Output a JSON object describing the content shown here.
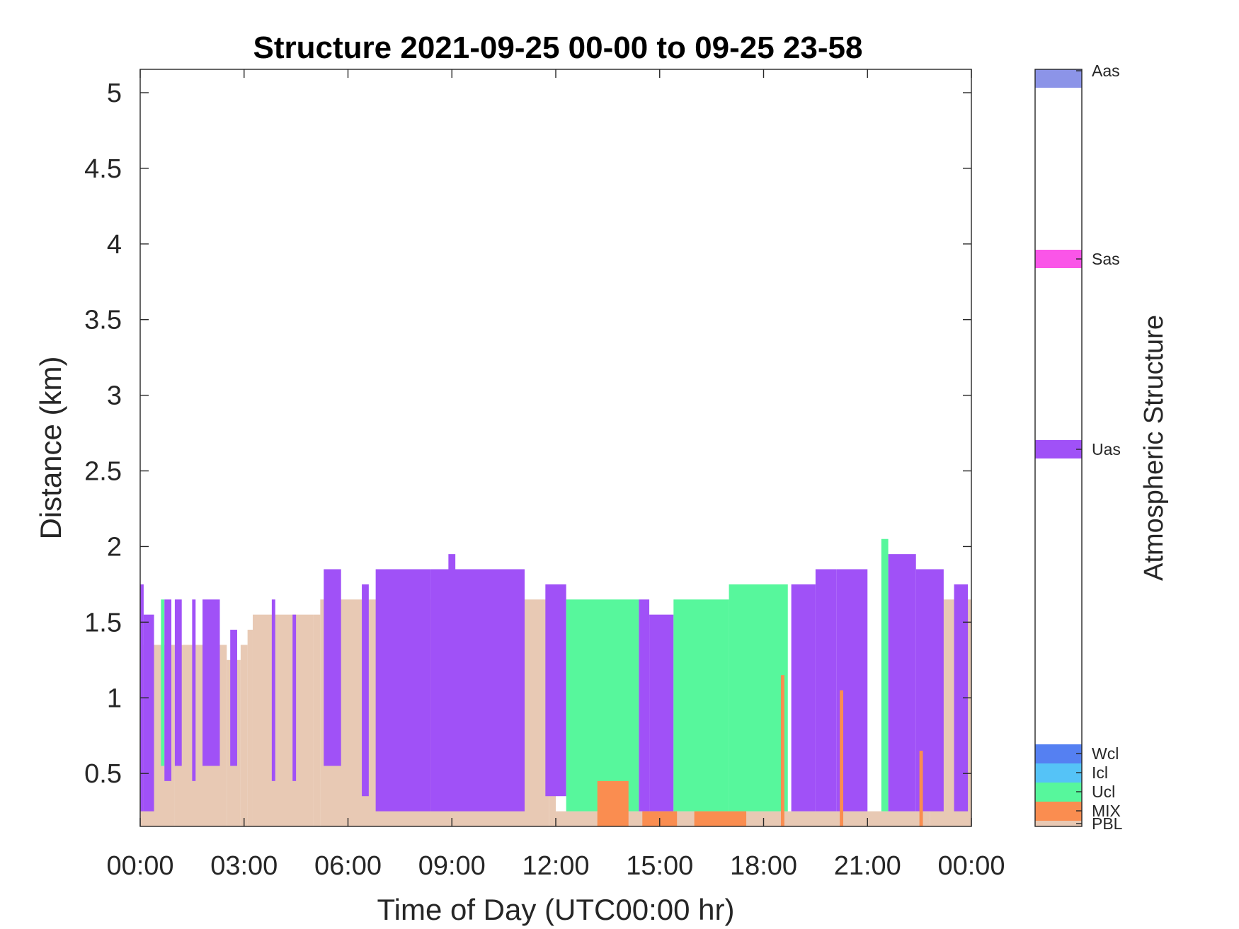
{
  "chart_data": {
    "type": "heatmap",
    "title": "Structure 2021-09-25 00-00 to 09-25 23-58",
    "xlabel": "Time of Day (UTC00:00 hr)",
    "ylabel": "Distance (km)",
    "xlim_hours": [
      0,
      24
    ],
    "ylim": [
      0.15,
      5.2
    ],
    "x_tick_labels": [
      "00:00",
      "03:00",
      "06:00",
      "09:00",
      "12:00",
      "15:00",
      "18:00",
      "21:00",
      "00:00"
    ],
    "y_ticks": [
      0.5,
      1,
      1.5,
      2,
      2.5,
      3,
      3.5,
      4,
      4.5,
      5
    ],
    "y_tick_labels": [
      "0.5",
      "1",
      "1.5",
      "2",
      "2.5",
      "3",
      "3.5",
      "4",
      "4.5",
      "5"
    ],
    "grid": false,
    "colorbar": {
      "label": "Atmospheric Structure",
      "categories": [
        {
          "name": "PBL",
          "color": "#E8C9B4"
        },
        {
          "name": "MIX",
          "color": "#FA8D50"
        },
        {
          "name": "Ucl",
          "color": "#57F79C"
        },
        {
          "name": "Icl",
          "color": "#55C3F7"
        },
        {
          "name": "Wcl",
          "color": "#5580F2"
        },
        {
          "name": "Uas",
          "color": "#A051F7"
        },
        {
          "name": "Sas",
          "color": "#FA55E8"
        },
        {
          "name": "Aas",
          "color": "#8C94E8"
        }
      ]
    },
    "pbl_top_km": [
      [
        0.0,
        1.35
      ],
      [
        1.0,
        1.35
      ],
      [
        2.5,
        1.25
      ],
      [
        2.9,
        1.35
      ],
      [
        3.1,
        1.45
      ],
      [
        3.25,
        1.55
      ],
      [
        5.0,
        1.55
      ],
      [
        5.2,
        1.65
      ],
      [
        11.8,
        1.65
      ],
      [
        12.0,
        0.25
      ],
      [
        22.8,
        0.25
      ],
      [
        22.8,
        1.65
      ],
      [
        24.0,
        1.55
      ]
    ],
    "segments": [
      {
        "category": "Uas",
        "hours": [
          0.0,
          0.1
        ],
        "km": [
          0.25,
          1.75
        ]
      },
      {
        "category": "Uas",
        "hours": [
          0.1,
          0.4
        ],
        "km": [
          0.25,
          1.55
        ]
      },
      {
        "category": "Ucl",
        "hours": [
          0.6,
          0.7
        ],
        "km": [
          0.55,
          1.65
        ]
      },
      {
        "category": "Uas",
        "hours": [
          0.7,
          0.9
        ],
        "km": [
          0.45,
          1.65
        ]
      },
      {
        "category": "Uas",
        "hours": [
          1.0,
          1.2
        ],
        "km": [
          0.55,
          1.65
        ]
      },
      {
        "category": "Uas",
        "hours": [
          1.5,
          1.6
        ],
        "km": [
          0.45,
          1.65
        ]
      },
      {
        "category": "Uas",
        "hours": [
          1.8,
          2.3
        ],
        "km": [
          0.55,
          1.65
        ]
      },
      {
        "category": "Uas",
        "hours": [
          2.6,
          2.8
        ],
        "km": [
          0.55,
          1.45
        ]
      },
      {
        "category": "Uas",
        "hours": [
          3.8,
          3.9
        ],
        "km": [
          0.45,
          1.65
        ]
      },
      {
        "category": "Uas",
        "hours": [
          4.4,
          4.5
        ],
        "km": [
          0.45,
          1.55
        ]
      },
      {
        "category": "Uas",
        "hours": [
          5.3,
          5.8
        ],
        "km": [
          0.55,
          1.85
        ]
      },
      {
        "category": "Uas",
        "hours": [
          6.4,
          6.6
        ],
        "km": [
          0.35,
          1.75
        ]
      },
      {
        "category": "Uas",
        "hours": [
          6.8,
          8.4
        ],
        "km": [
          0.25,
          1.85
        ]
      },
      {
        "category": "Uas",
        "hours": [
          8.4,
          11.1
        ],
        "km": [
          0.25,
          1.85
        ]
      },
      {
        "category": "Uas",
        "hours": [
          8.9,
          9.1
        ],
        "km": [
          1.85,
          1.95
        ]
      },
      {
        "category": "Uas",
        "hours": [
          11.7,
          12.3
        ],
        "km": [
          0.35,
          1.75
        ]
      },
      {
        "category": "Ucl",
        "hours": [
          12.3,
          14.4
        ],
        "km": [
          0.25,
          1.65
        ]
      },
      {
        "category": "Uas",
        "hours": [
          14.4,
          14.7
        ],
        "km": [
          0.25,
          1.65
        ]
      },
      {
        "category": "Uas",
        "hours": [
          14.7,
          15.4
        ],
        "km": [
          0.25,
          1.55
        ]
      },
      {
        "category": "Ucl",
        "hours": [
          15.4,
          17.0
        ],
        "km": [
          0.25,
          1.65
        ]
      },
      {
        "category": "Ucl",
        "hours": [
          17.0,
          18.7
        ],
        "km": [
          0.25,
          1.75
        ]
      },
      {
        "category": "Uas",
        "hours": [
          18.8,
          19.5
        ],
        "km": [
          0.25,
          1.75
        ]
      },
      {
        "category": "Uas",
        "hours": [
          19.5,
          20.1
        ],
        "km": [
          0.25,
          1.85
        ]
      },
      {
        "category": "Uas",
        "hours": [
          20.1,
          21.0
        ],
        "km": [
          0.25,
          1.85
        ]
      },
      {
        "category": "Ucl",
        "hours": [
          21.4,
          21.6
        ],
        "km": [
          0.25,
          2.05
        ]
      },
      {
        "category": "Uas",
        "hours": [
          21.6,
          22.4
        ],
        "km": [
          0.25,
          1.95
        ]
      },
      {
        "category": "Uas",
        "hours": [
          22.4,
          23.2
        ],
        "km": [
          0.25,
          1.85
        ]
      },
      {
        "category": "Uas",
        "hours": [
          23.5,
          23.9
        ],
        "km": [
          0.25,
          1.75
        ]
      },
      {
        "category": "MIX",
        "hours": [
          13.2,
          14.1
        ],
        "km": [
          0.15,
          0.45
        ]
      },
      {
        "category": "MIX",
        "hours": [
          14.5,
          15.5
        ],
        "km": [
          0.15,
          0.25
        ]
      },
      {
        "category": "MIX",
        "hours": [
          16.0,
          17.5
        ],
        "km": [
          0.15,
          0.25
        ]
      },
      {
        "category": "MIX",
        "hours": [
          18.5,
          18.6
        ],
        "km": [
          0.15,
          1.15
        ]
      },
      {
        "category": "MIX",
        "hours": [
          20.2,
          20.3
        ],
        "km": [
          0.15,
          1.05
        ]
      },
      {
        "category": "MIX",
        "hours": [
          22.5,
          22.6
        ],
        "km": [
          0.15,
          0.65
        ]
      }
    ]
  }
}
